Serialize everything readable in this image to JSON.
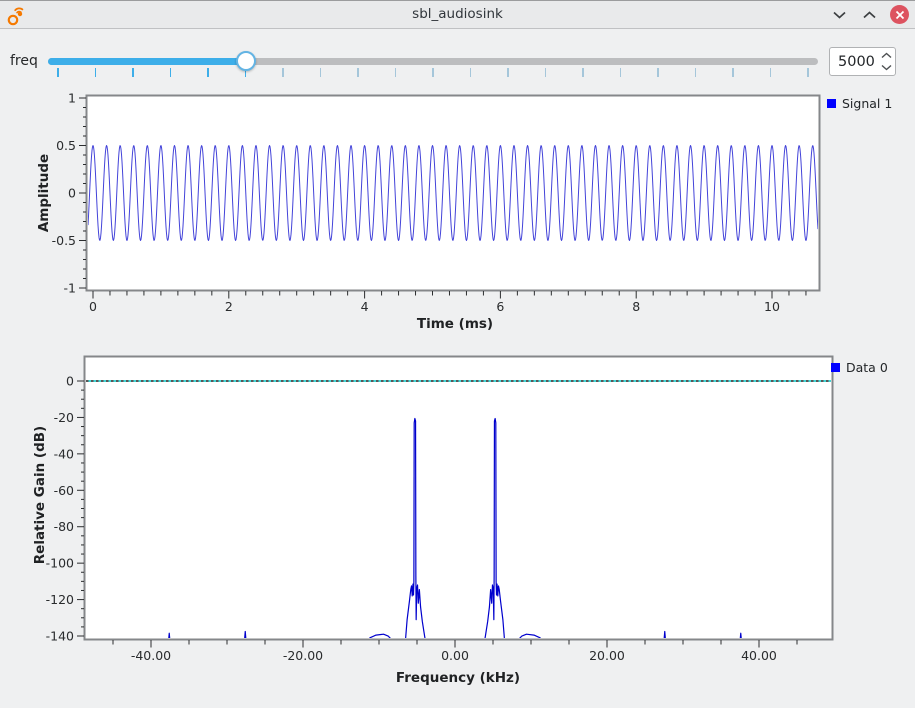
{
  "window": {
    "title": "sbl_audiosink"
  },
  "titlebar": {
    "app_icon": "gnuradio-logo",
    "buttons": [
      {
        "name": "minimize",
        "icon": "chevron-down"
      },
      {
        "name": "maximize",
        "icon": "chevron-up"
      },
      {
        "name": "close",
        "icon": "close-x",
        "color": "#dd5360"
      }
    ]
  },
  "controls": {
    "freq": {
      "label": "freq",
      "value": "5000",
      "slider": {
        "fraction": 0.25,
        "tick_count": 21,
        "active_color": "#3daee9",
        "inactive_color": "#a5c6da",
        "groove_color": "#bcbdbf"
      }
    }
  },
  "chart_data": [
    {
      "type": "line",
      "title": "",
      "xlabel": "Time (ms)",
      "ylabel": "Amplitude",
      "xlim": [
        -0.07,
        10.68
      ],
      "ylim": [
        -1.01,
        1.01
      ],
      "x_ticks": [
        0,
        2,
        4,
        6,
        8,
        10
      ],
      "x_tick_labels": [
        "0",
        "2",
        "4",
        "6",
        "8",
        "10"
      ],
      "x_minor_step": 0.25,
      "y_ticks": [
        1,
        0.5,
        0,
        -0.5,
        -1
      ],
      "y_tick_labels": [
        "1",
        "0.5",
        "0",
        "-0.5",
        "-1"
      ],
      "y_minor_step": 0.1,
      "grid": false,
      "legend_position": "top-right-outside",
      "legend": [
        {
          "label": "Signal 1",
          "color": "#0000ff"
        }
      ],
      "series": [
        {
          "name": "Signal 1",
          "color": "#4343d9",
          "generator": {
            "kind": "cosine",
            "amplitude": 0.5,
            "frequency_khz": 5,
            "phase_deg": 0
          }
        }
      ]
    },
    {
      "type": "line",
      "title": "",
      "xlabel": "Frequency (kHz)",
      "ylabel": "Relative Gain (dB)",
      "xlim": [
        -48.7,
        49.6
      ],
      "ylim": [
        -140.5,
        12.6
      ],
      "x_ticks": [
        -40,
        -20,
        0,
        20,
        40
      ],
      "x_tick_labels": [
        "-40.00",
        "-20.00",
        "0.00",
        "20.00",
        "40.00"
      ],
      "x_minor_step": 5,
      "y_ticks": [
        0,
        -20,
        -40,
        -60,
        -80,
        -100,
        -120,
        -140
      ],
      "y_tick_labels": [
        "0",
        "-20",
        "-40",
        "-60",
        "-80",
        "-100",
        "-120",
        "-140"
      ],
      "y_minor_step": 5,
      "grid": false,
      "reference_line": {
        "y": 0,
        "style": "dotted",
        "color": "#00caca"
      },
      "legend_position": "top-right-outside",
      "legend": [
        {
          "label": "Data 0",
          "color": "#0000ff"
        }
      ],
      "series": [
        {
          "name": "Data 0",
          "color": "#0000cd",
          "points": [
            [
              -48.7,
              -150
            ],
            [
              -37.85,
              -150
            ],
            [
              -37.6,
              -138.5
            ],
            [
              -37.35,
              -150
            ],
            [
              -27.85,
              -150
            ],
            [
              -27.6,
              -137.5
            ],
            [
              -27.35,
              -150
            ],
            [
              -11.75,
              -150
            ],
            [
              -11.2,
              -141
            ],
            [
              -10.4,
              -139.5
            ],
            [
              -9.4,
              -139
            ],
            [
              -8.8,
              -140
            ],
            [
              -8.45,
              -141.5
            ],
            [
              -8.25,
              -150
            ],
            [
              -6.7,
              -150
            ],
            [
              -6.55,
              -144
            ],
            [
              -6.3,
              -131
            ],
            [
              -6.0,
              -121
            ],
            [
              -5.82,
              -114.5
            ],
            [
              -5.72,
              -112.5
            ],
            [
              -5.63,
              -118
            ],
            [
              -5.53,
              -111.5
            ],
            [
              -5.46,
              -117.5
            ],
            [
              -5.41,
              -110
            ],
            [
              -5.37,
              -23
            ],
            [
              -5.28,
              -20.6
            ],
            [
              -5.19,
              -22
            ],
            [
              -5.15,
              -107
            ],
            [
              -5.11,
              -131
            ],
            [
              -5.03,
              -114
            ],
            [
              -4.93,
              -112
            ],
            [
              -4.83,
              -122
            ],
            [
              -4.69,
              -114.5
            ],
            [
              -4.53,
              -124
            ],
            [
              -4.3,
              -132
            ],
            [
              -4.0,
              -140
            ],
            [
              -3.75,
              -146
            ],
            [
              -3.62,
              -150
            ],
            [
              3.62,
              -150
            ],
            [
              3.75,
              -146
            ],
            [
              4.0,
              -140
            ],
            [
              4.3,
              -132
            ],
            [
              4.53,
              -124
            ],
            [
              4.69,
              -114.5
            ],
            [
              4.83,
              -122
            ],
            [
              4.93,
              -112
            ],
            [
              5.03,
              -114
            ],
            [
              5.11,
              -131
            ],
            [
              5.15,
              -107
            ],
            [
              5.19,
              -22
            ],
            [
              5.28,
              -20.6
            ],
            [
              5.37,
              -23
            ],
            [
              5.41,
              -110
            ],
            [
              5.46,
              -117.5
            ],
            [
              5.53,
              -111.5
            ],
            [
              5.63,
              -118
            ],
            [
              5.72,
              -112.5
            ],
            [
              5.82,
              -114.5
            ],
            [
              6.0,
              -121
            ],
            [
              6.3,
              -131
            ],
            [
              6.55,
              -144
            ],
            [
              6.7,
              -150
            ],
            [
              8.25,
              -150
            ],
            [
              8.45,
              -141.5
            ],
            [
              8.8,
              -140
            ],
            [
              9.4,
              -139
            ],
            [
              10.4,
              -139.5
            ],
            [
              11.2,
              -141
            ],
            [
              11.75,
              -150
            ],
            [
              27.35,
              -150
            ],
            [
              27.6,
              -137.5
            ],
            [
              27.85,
              -150
            ],
            [
              37.35,
              -150
            ],
            [
              37.6,
              -138.5
            ],
            [
              37.85,
              -150
            ],
            [
              49.6,
              -150
            ]
          ]
        }
      ]
    }
  ]
}
